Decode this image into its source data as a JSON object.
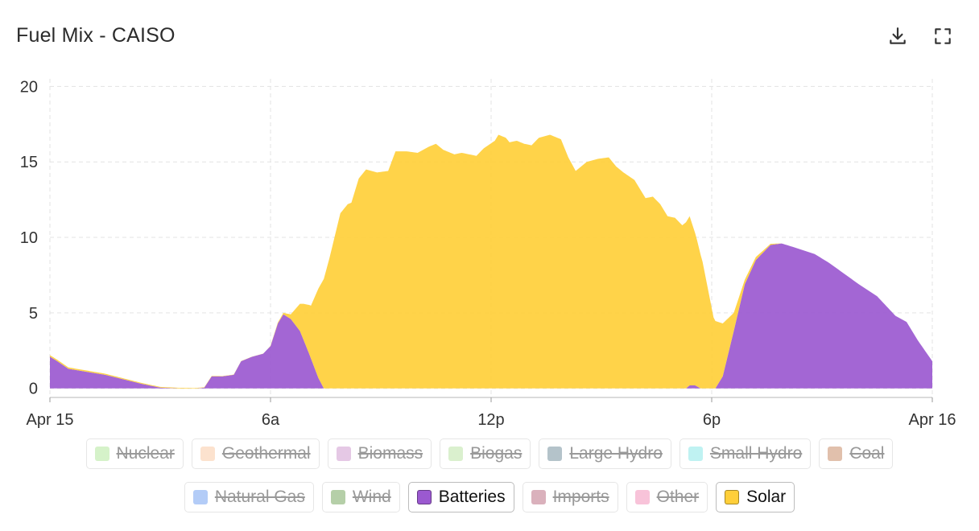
{
  "header": {
    "title": "Fuel Mix - CAISO",
    "download_icon": "download-icon",
    "fullscreen_icon": "fullscreen-icon"
  },
  "legend": {
    "row1": [
      {
        "label": "Nuclear",
        "color": "#9be07f",
        "active": false
      },
      {
        "label": "Geothermal",
        "color": "#f9b98a",
        "active": false
      },
      {
        "label": "Biomass",
        "color": "#c27cc0",
        "active": false
      },
      {
        "label": "Biogas",
        "color": "#a6dc8a",
        "active": false
      },
      {
        "label": "Large Hydro",
        "color": "#4d6f80",
        "active": false
      },
      {
        "label": "Small Hydro",
        "color": "#66e0e0",
        "active": false
      },
      {
        "label": "Coal",
        "color": "#b86a3a",
        "active": false
      }
    ],
    "row2": [
      {
        "label": "Natural Gas",
        "color": "#4a86ec",
        "active": false
      },
      {
        "label": "Wind",
        "color": "#4f8c2f",
        "active": false
      },
      {
        "label": "Batteries",
        "color": "#9b59d0",
        "active": true
      },
      {
        "label": "Imports",
        "color": "#a8465f",
        "active": false
      },
      {
        "label": "Other",
        "color": "#ee6fa4",
        "active": false
      },
      {
        "label": "Solar",
        "color": "#ffcf3a",
        "active": true
      }
    ]
  },
  "chart_data": {
    "type": "area",
    "stacked": true,
    "title": "Fuel Mix - CAISO",
    "xlabel": "",
    "ylabel": "",
    "x_ticks": [
      {
        "label": "Apr 15",
        "hour": 0
      },
      {
        "label": "6a",
        "hour": 6
      },
      {
        "label": "12p",
        "hour": 12
      },
      {
        "label": "6p",
        "hour": 18
      },
      {
        "label": "Apr 16",
        "hour": 24
      }
    ],
    "y_ticks": [
      0,
      5,
      10,
      15,
      20
    ],
    "xlim": [
      0,
      24
    ],
    "ylim": [
      -0.6,
      20.5
    ],
    "grid": true,
    "series": [
      {
        "name": "Batteries",
        "color": "#9b59d0",
        "points": [
          [
            0,
            2.1
          ],
          [
            0.2,
            1.8
          ],
          [
            0.5,
            1.3
          ],
          [
            1,
            1.1
          ],
          [
            1.5,
            0.9
          ],
          [
            2,
            0.6
          ],
          [
            2.5,
            0.3
          ],
          [
            3,
            0.05
          ],
          [
            3.5,
            0
          ],
          [
            4,
            0
          ],
          [
            4.2,
            0.05
          ],
          [
            4.4,
            0.8
          ],
          [
            4.7,
            0.8
          ],
          [
            5,
            0.9
          ],
          [
            5.2,
            1.8
          ],
          [
            5.5,
            2.1
          ],
          [
            5.8,
            2.3
          ],
          [
            6,
            2.8
          ],
          [
            6.2,
            4.3
          ],
          [
            6.35,
            4.9
          ],
          [
            6.55,
            4.6
          ],
          [
            6.8,
            3.8
          ],
          [
            7.05,
            2.3
          ],
          [
            7.3,
            0.7
          ],
          [
            7.45,
            0
          ],
          [
            17.3,
            0
          ],
          [
            17.4,
            0.2
          ],
          [
            17.55,
            0.2
          ],
          [
            17.7,
            0
          ],
          [
            18.1,
            0
          ],
          [
            18.3,
            0.8
          ],
          [
            18.6,
            3.8
          ],
          [
            18.9,
            6.9
          ],
          [
            19.2,
            8.5
          ],
          [
            19.6,
            9.5
          ],
          [
            19.9,
            9.6
          ],
          [
            20.3,
            9.3
          ],
          [
            20.8,
            8.9
          ],
          [
            21.2,
            8.3
          ],
          [
            21.6,
            7.6
          ],
          [
            22,
            6.9
          ],
          [
            22.5,
            6.1
          ],
          [
            23,
            4.8
          ],
          [
            23.3,
            4.4
          ],
          [
            23.6,
            3.2
          ],
          [
            24,
            1.8
          ]
        ]
      },
      {
        "name": "Solar",
        "color": "#ffcf3a",
        "points": [
          [
            0,
            0.1
          ],
          [
            5.9,
            0
          ],
          [
            6.35,
            0.1
          ],
          [
            6.55,
            0.3
          ],
          [
            6.7,
            1.2
          ],
          [
            6.9,
            2.4
          ],
          [
            7.1,
            3.5
          ],
          [
            7.3,
            5.9
          ],
          [
            7.6,
            8.6
          ],
          [
            7.9,
            11.6
          ],
          [
            8.1,
            12.2
          ],
          [
            8.2,
            12.3
          ],
          [
            8.4,
            13.9
          ],
          [
            8.6,
            14.5
          ],
          [
            8.9,
            14.3
          ],
          [
            9.2,
            14.4
          ],
          [
            9.4,
            15.7
          ],
          [
            9.7,
            15.7
          ],
          [
            10,
            15.6
          ],
          [
            10.3,
            16.0
          ],
          [
            10.5,
            16.2
          ],
          [
            10.7,
            15.8
          ],
          [
            11,
            15.5
          ],
          [
            11.2,
            15.6
          ],
          [
            11.6,
            15.4
          ],
          [
            11.8,
            15.9
          ],
          [
            12.1,
            16.4
          ],
          [
            12.2,
            16.8
          ],
          [
            12.4,
            16.6
          ],
          [
            12.5,
            16.3
          ],
          [
            12.7,
            16.4
          ],
          [
            12.9,
            16.2
          ],
          [
            13.1,
            16.1
          ],
          [
            13.3,
            16.6
          ],
          [
            13.6,
            16.8
          ],
          [
            13.9,
            16.5
          ],
          [
            14.1,
            15.3
          ],
          [
            14.3,
            14.4
          ],
          [
            14.6,
            15.0
          ],
          [
            14.9,
            15.2
          ],
          [
            15.2,
            15.3
          ],
          [
            15.4,
            14.7
          ],
          [
            15.6,
            14.3
          ],
          [
            15.9,
            13.8
          ],
          [
            16.2,
            12.6
          ],
          [
            16.4,
            12.7
          ],
          [
            16.6,
            12.2
          ],
          [
            16.8,
            11.4
          ],
          [
            17,
            11.3
          ],
          [
            17.2,
            10.8
          ],
          [
            17.4,
            11.2
          ],
          [
            17.6,
            9.7
          ],
          [
            17.75,
            8.4
          ],
          [
            18.05,
            4.7
          ],
          [
            18.3,
            3.5
          ],
          [
            18.6,
            1.2
          ],
          [
            18.9,
            0.3
          ],
          [
            19.2,
            0.2
          ],
          [
            19.5,
            0.1
          ],
          [
            19.9,
            0
          ],
          [
            24,
            0
          ]
        ]
      }
    ]
  }
}
